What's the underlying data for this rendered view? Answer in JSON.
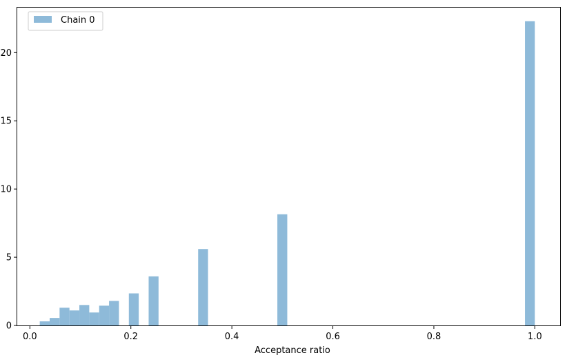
{
  "chart_data": {
    "type": "bar",
    "title": "",
    "xlabel": "Acceptance ratio",
    "ylabel": "",
    "xlim": [
      -0.025,
      1.05
    ],
    "ylim": [
      0,
      23.3
    ],
    "xticks": [
      0.0,
      0.2,
      0.4,
      0.6,
      0.8,
      1.0
    ],
    "xtick_labels": [
      "0.0",
      "0.2",
      "0.4",
      "0.6",
      "0.8",
      "1.0"
    ],
    "yticks": [
      0,
      5,
      10,
      15,
      20
    ],
    "ytick_labels": [
      "0",
      "5",
      "10",
      "15",
      "20"
    ],
    "bin_width": 0.0196,
    "grid": false,
    "legend_position": "upper-left",
    "colors": {
      "bar": "#8ebad9",
      "axis": "#000000",
      "legend_border": "#cccccc"
    },
    "series": [
      {
        "name": "Chain 0",
        "bins": [
          {
            "x": 0.0196,
            "height": 0.3
          },
          {
            "x": 0.0392,
            "height": 0.55
          },
          {
            "x": 0.0588,
            "height": 1.3
          },
          {
            "x": 0.0784,
            "height": 1.1
          },
          {
            "x": 0.098,
            "height": 1.5
          },
          {
            "x": 0.1176,
            "height": 0.95
          },
          {
            "x": 0.1372,
            "height": 1.45
          },
          {
            "x": 0.1568,
            "height": 1.8
          },
          {
            "x": 0.196,
            "height": 2.35
          },
          {
            "x": 0.2352,
            "height": 3.6
          },
          {
            "x": 0.3332,
            "height": 5.6
          },
          {
            "x": 0.4901,
            "height": 8.15
          },
          {
            "x": 0.9804,
            "height": 22.3
          }
        ]
      }
    ]
  }
}
